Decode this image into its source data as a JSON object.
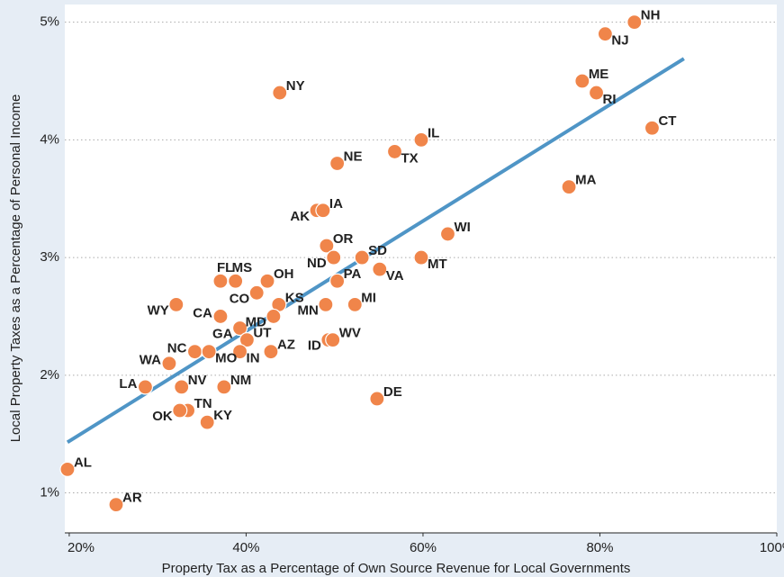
{
  "chart_data": {
    "type": "scatter",
    "x_label": "Property Tax as a Percentage of Own Source Revenue for Local Governments",
    "y_label": "Local Property Taxes as a Percentage of Personal Income",
    "labels": [
      "NH",
      "NJ",
      "ME",
      "RI",
      "CT",
      "MA",
      "NY",
      "IL",
      "TX",
      "NE",
      "AK",
      "IA",
      "WI",
      "OR",
      "ND",
      "SD",
      "MT",
      "VA",
      "PA",
      "FL",
      "MS",
      "OH",
      "CO",
      "KS",
      "WY",
      "MN",
      "MI",
      "CA",
      "MD",
      "GA",
      "UT",
      "ID",
      "WV",
      "WA",
      "NC",
      "MO",
      "IN",
      "AZ",
      "LA",
      "NV",
      "NM",
      "DE",
      "TN",
      "OK",
      "KY",
      "AL",
      "AR"
    ],
    "x": [
      83.9,
      80.6,
      78.0,
      79.6,
      85.9,
      76.5,
      43.8,
      59.8,
      56.8,
      50.3,
      48.0,
      48.7,
      62.8,
      49.1,
      49.9,
      53.1,
      59.8,
      55.1,
      50.3,
      37.1,
      38.8,
      42.4,
      41.2,
      43.7,
      32.1,
      49.0,
      52.3,
      37.1,
      43.1,
      39.3,
      40.1,
      49.3,
      49.8,
      31.3,
      34.2,
      35.8,
      39.3,
      42.8,
      28.6,
      32.7,
      37.5,
      54.8,
      33.4,
      32.5,
      35.6,
      19.8,
      25.3
    ],
    "y": [
      5.0,
      4.9,
      4.5,
      4.4,
      4.1,
      3.6,
      4.4,
      4.0,
      3.9,
      3.8,
      3.4,
      3.4,
      3.2,
      3.1,
      3.0,
      3.0,
      3.0,
      2.9,
      2.8,
      2.8,
      2.8,
      2.8,
      2.7,
      2.6,
      2.6,
      2.6,
      2.6,
      2.5,
      2.5,
      2.4,
      2.3,
      2.3,
      2.3,
      2.1,
      2.2,
      2.2,
      2.2,
      2.2,
      1.9,
      1.9,
      1.9,
      1.8,
      1.7,
      1.7,
      1.6,
      1.2,
      0.9
    ],
    "color": "#f0854a",
    "trendline": {
      "x": [
        19.8,
        89.5
      ],
      "y": [
        1.43,
        4.69
      ],
      "color": "#4f95c6"
    },
    "xlim": [
      19.5,
      100
    ],
    "ylim": [
      0.66,
      5.15
    ],
    "xticks": [
      {
        "value": 20,
        "label": "20%"
      },
      {
        "value": 40,
        "label": "40%"
      },
      {
        "value": 60,
        "label": "60%"
      },
      {
        "value": 80,
        "label": "80%"
      },
      {
        "value": 100,
        "label": "100%"
      }
    ],
    "yticks": [
      {
        "value": 1,
        "label": "1%"
      },
      {
        "value": 2,
        "label": "2%"
      },
      {
        "value": 3,
        "label": "3%"
      },
      {
        "value": 4,
        "label": "4%"
      },
      {
        "value": 5,
        "label": "5%"
      }
    ],
    "grid": true
  }
}
